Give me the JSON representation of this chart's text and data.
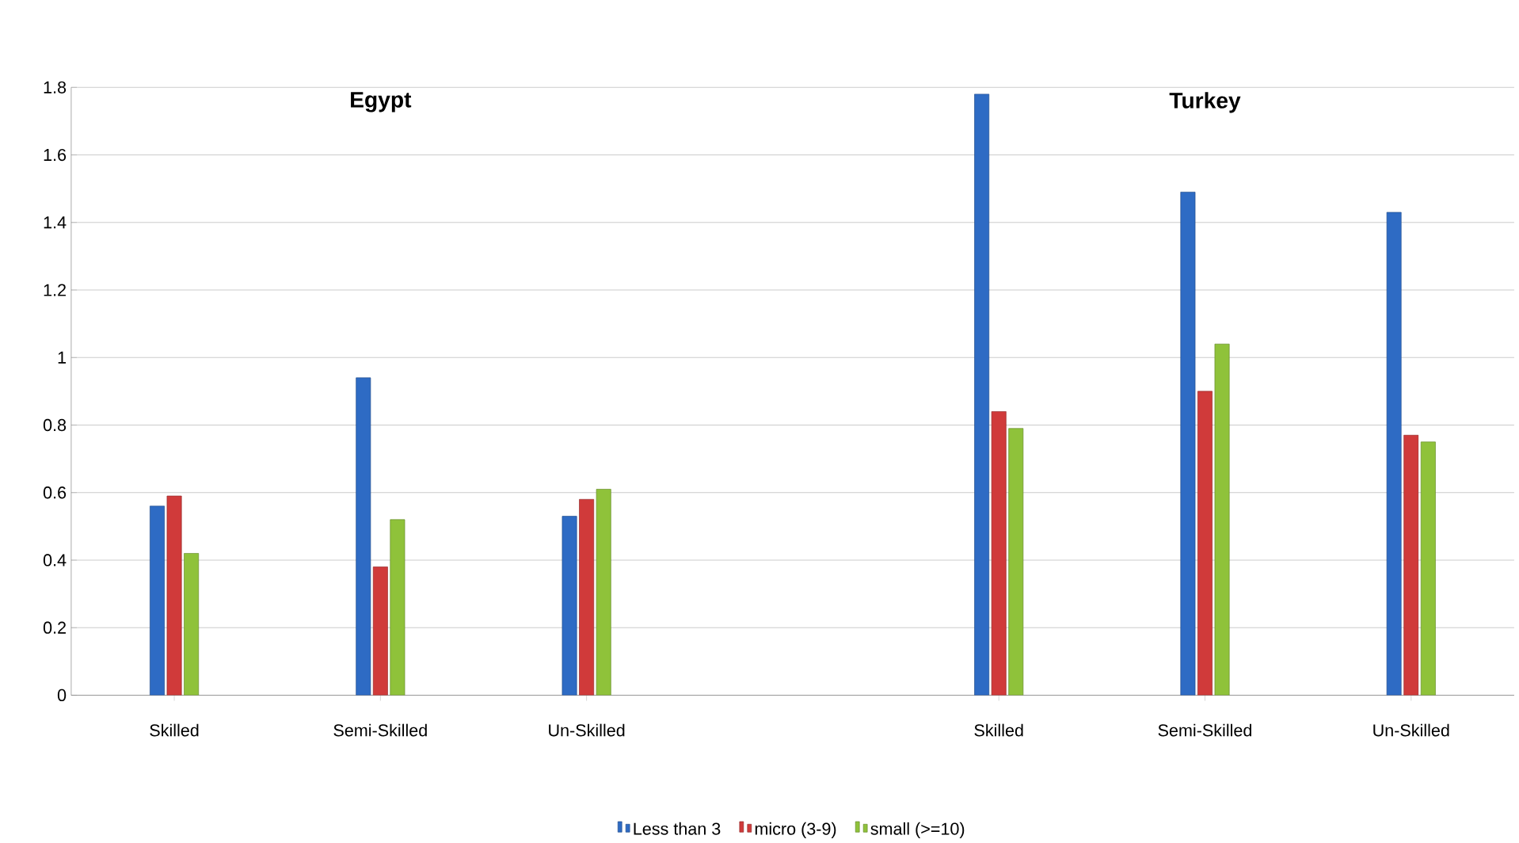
{
  "chart_data": {
    "type": "bar",
    "categories": [
      "Skilled",
      "Semi-Skilled",
      "Un-Skilled",
      null,
      "Skilled",
      "Semi-Skilled",
      "Un-Skilled"
    ],
    "series": [
      {
        "name": "Less than 3",
        "color": "#2e6bc4",
        "values": [
          0.56,
          0.94,
          0.53,
          null,
          1.78,
          1.49,
          1.43
        ]
      },
      {
        "name": "micro (3-9)",
        "color": "#d03a3a",
        "values": [
          0.59,
          0.38,
          0.58,
          null,
          0.84,
          0.9,
          0.77
        ]
      },
      {
        "name": "small (>=10)",
        "color": "#8fc23a",
        "values": [
          0.42,
          0.52,
          0.61,
          null,
          0.79,
          1.04,
          0.75
        ]
      }
    ],
    "annotations": [
      "Egypt",
      "Turkey"
    ],
    "ylim": [
      0,
      1.8
    ],
    "yticks": [
      0,
      0.2,
      0.4,
      0.6,
      0.8,
      1,
      1.2,
      1.4,
      1.6,
      1.8
    ],
    "grid": "y",
    "legend": "bottom"
  }
}
